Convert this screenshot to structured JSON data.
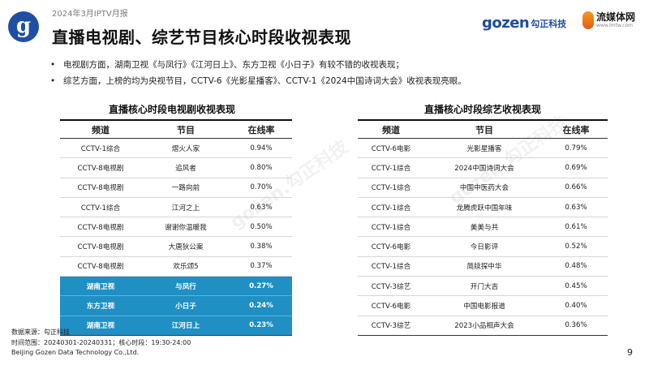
{
  "header": {
    "report_label": "2024年3月IPTV月报",
    "title": "直播电视剧、综艺节目核心时段收视表现",
    "brand_gozen_word": "gozen",
    "brand_gozen_cn": "勾正科技",
    "brand_lmtw_cn": "流媒体网",
    "brand_lmtw_url": "www.lmtw.com"
  },
  "bullets": [
    "电视剧方面，湖南卫视《与凤行》《江河日上》、东方卫视《小日子》有较不错的收视表现；",
    "综艺方面，上榜的均为央视节目，CCTV-6《光影星播客》、CCTV-1《2024中国诗词大会》收视表现亮眼。"
  ],
  "bullet_marker": "•",
  "tables": {
    "drama": {
      "title": "直播核心时段电视剧收视表现",
      "headers": [
        "频道",
        "节目",
        "在线率"
      ],
      "rows": [
        [
          "CCTV-1综合",
          "熠火人家",
          "0.94%"
        ],
        [
          "CCTV-8电视剧",
          "追风者",
          "0.80%"
        ],
        [
          "CCTV-8电视剧",
          "一路向前",
          "0.70%"
        ],
        [
          "CCTV-1综合",
          "江河之上",
          "0.63%"
        ],
        [
          "CCTV-8电视剧",
          "谢谢你温暖我",
          "0.50%"
        ],
        [
          "CCTV-8电视剧",
          "大唐狄公案",
          "0.38%"
        ],
        [
          "CCTV-8电视剧",
          "欢乐颂5",
          "0.37%"
        ],
        [
          "湖南卫视",
          "与凤行",
          "0.27%"
        ],
        [
          "东方卫视",
          "小日子",
          "0.24%"
        ],
        [
          "湖南卫视",
          "江河日上",
          "0.23%"
        ]
      ]
    },
    "variety": {
      "title": "直播核心时段综艺收视表现",
      "headers": [
        "频道",
        "节目",
        "在线率"
      ],
      "rows": [
        [
          "CCTV-6电影",
          "光影星播客",
          "0.79%"
        ],
        [
          "CCTV-1综合",
          "2024中国诗词大会",
          "0.69%"
        ],
        [
          "CCTV-1综合",
          "中国中医药大会",
          "0.66%"
        ],
        [
          "CCTV-1综合",
          "龙腾虎跃中国年味",
          "0.63%"
        ],
        [
          "CCTV-1综合",
          "美美与共",
          "0.61%"
        ],
        [
          "CCTV-6电影",
          "今日影评",
          "0.52%"
        ],
        [
          "CCTV-1综合",
          "简牍探中华",
          "0.48%"
        ],
        [
          "CCTV-3综艺",
          "开门大吉",
          "0.45%"
        ],
        [
          "CCTV-6电影",
          "中国电影报道",
          "0.40%"
        ],
        [
          "CCTV-3综艺",
          "2023小品相声大会",
          "0.36%"
        ]
      ]
    }
  },
  "footer": {
    "source": "数据来源：勾正科技",
    "range": "时间范围：20240301-20240331；核心时段：19:30-24:00",
    "company": "Beijing Gozen Data Technology Co.,Ltd."
  },
  "page_number": "9",
  "colors": {
    "highlight": "#1f8fc4",
    "brand_blue": "#1e4c9e"
  }
}
